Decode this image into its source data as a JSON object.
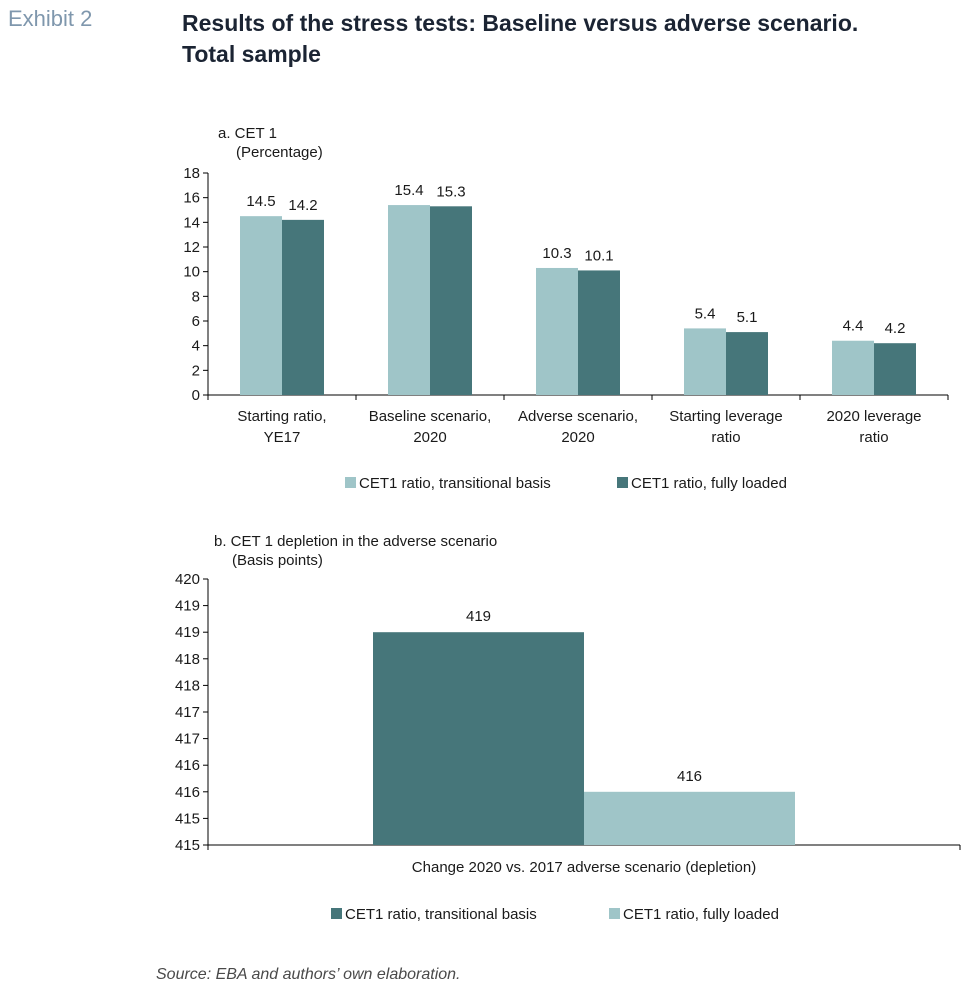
{
  "header": {
    "exhibit": "Exhibit 2",
    "title_line1": "Results of the stress tests: Baseline versus adverse scenario.",
    "title_line2": "Total sample"
  },
  "colors": {
    "transitional": "#9fc5c8",
    "fully_loaded": "#46767a",
    "axis": "#000000"
  },
  "chart_data": [
    {
      "type": "bar",
      "title": "a. CET 1",
      "subtitle": "(Percentage)",
      "categories": [
        [
          "Starting ratio,",
          "YE17"
        ],
        [
          "Baseline scenario,",
          "2020"
        ],
        [
          "Adverse scenario,",
          "2020"
        ],
        [
          "Starting leverage",
          "ratio"
        ],
        [
          "2020 leverage",
          "ratio"
        ]
      ],
      "series": [
        {
          "name": "CET1 ratio, transitional basis",
          "values": [
            14.5,
            15.4,
            10.3,
            5.4,
            4.4
          ],
          "labels": [
            "14.5",
            "15.4",
            "10.3",
            "5.4",
            "4.4"
          ]
        },
        {
          "name": "CET1 ratio, fully loaded",
          "values": [
            14.2,
            15.3,
            10.1,
            5.1,
            4.2
          ],
          "labels": [
            "14.2",
            "15.3",
            "10.1",
            "5.1",
            "4.2"
          ]
        }
      ],
      "ylim": [
        0,
        18
      ],
      "yticks": [
        "0",
        "2",
        "4",
        "6",
        "8",
        "10",
        "12",
        "14",
        "16",
        "18"
      ],
      "legend": "bottom"
    },
    {
      "type": "bar",
      "title": "b. CET 1 depletion in the adverse scenario",
      "subtitle": "(Basis points)",
      "categories": [
        "Change 2020 vs. 2017 adverse scenario (depletion)"
      ],
      "series": [
        {
          "name": "CET1 ratio, transitional basis",
          "values": [
            419
          ],
          "labels": [
            "419"
          ]
        },
        {
          "name": "CET1 ratio, fully loaded",
          "values": [
            416
          ],
          "labels": [
            "416"
          ]
        }
      ],
      "ylim": [
        415,
        420
      ],
      "yticks": [
        "420",
        "419",
        "419",
        "418",
        "418",
        "417",
        "417",
        "416",
        "416",
        "415",
        "415"
      ],
      "legend": "bottom"
    }
  ],
  "source": "Source: EBA and authors’ own elaboration."
}
